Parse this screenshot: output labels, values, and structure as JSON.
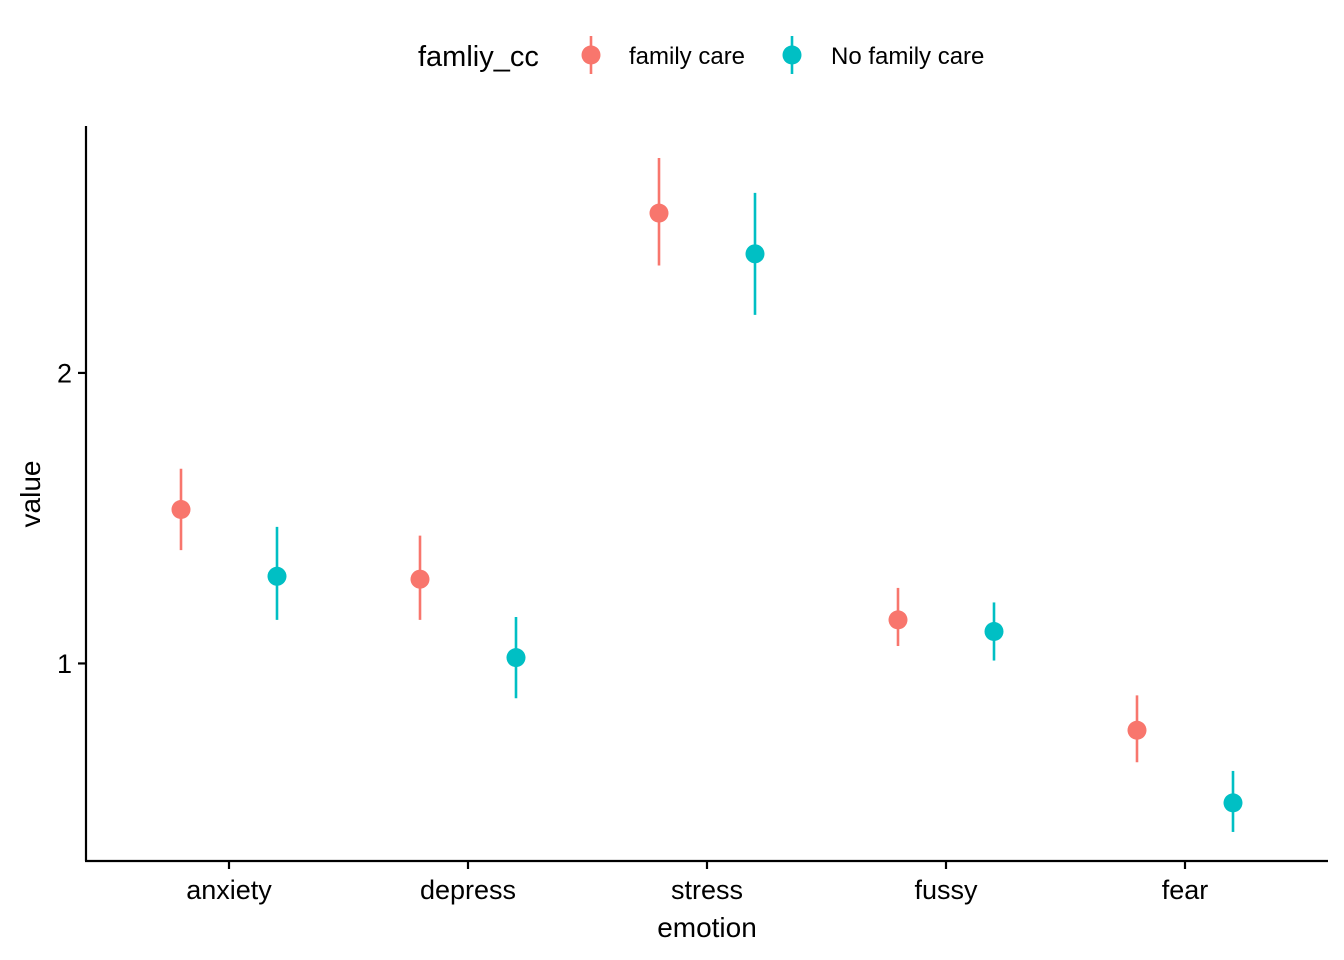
{
  "chart_data": {
    "type": "scatter",
    "subtype": "pointrange",
    "xlabel": "emotion",
    "ylabel": "value",
    "categories": [
      "anxiety",
      "depress",
      "stress",
      "fussy",
      "fear"
    ],
    "y_ticks": [
      1,
      2
    ],
    "ylim": [
      0.32,
      2.85
    ],
    "grid": false,
    "legend": {
      "title": "famliy_cc",
      "position": "top"
    },
    "series": [
      {
        "name": "family care",
        "color": "#F8766D",
        "points": [
          {
            "category": "anxiety",
            "y": 1.53,
            "ymin": 1.39,
            "ymax": 1.67
          },
          {
            "category": "depress",
            "y": 1.29,
            "ymin": 1.15,
            "ymax": 1.44
          },
          {
            "category": "stress",
            "y": 2.55,
            "ymin": 2.37,
            "ymax": 2.74
          },
          {
            "category": "fussy",
            "y": 1.15,
            "ymin": 1.06,
            "ymax": 1.26
          },
          {
            "category": "fear",
            "y": 0.77,
            "ymin": 0.66,
            "ymax": 0.89
          }
        ]
      },
      {
        "name": "No family care",
        "color": "#00BFC4",
        "points": [
          {
            "category": "anxiety",
            "y": 1.3,
            "ymin": 1.15,
            "ymax": 1.47
          },
          {
            "category": "depress",
            "y": 1.02,
            "ymin": 0.88,
            "ymax": 1.16
          },
          {
            "category": "stress",
            "y": 2.41,
            "ymin": 2.2,
            "ymax": 2.62
          },
          {
            "category": "fussy",
            "y": 1.11,
            "ymin": 1.01,
            "ymax": 1.21
          },
          {
            "category": "fear",
            "y": 0.52,
            "ymin": 0.42,
            "ymax": 0.63
          }
        ]
      }
    ]
  }
}
